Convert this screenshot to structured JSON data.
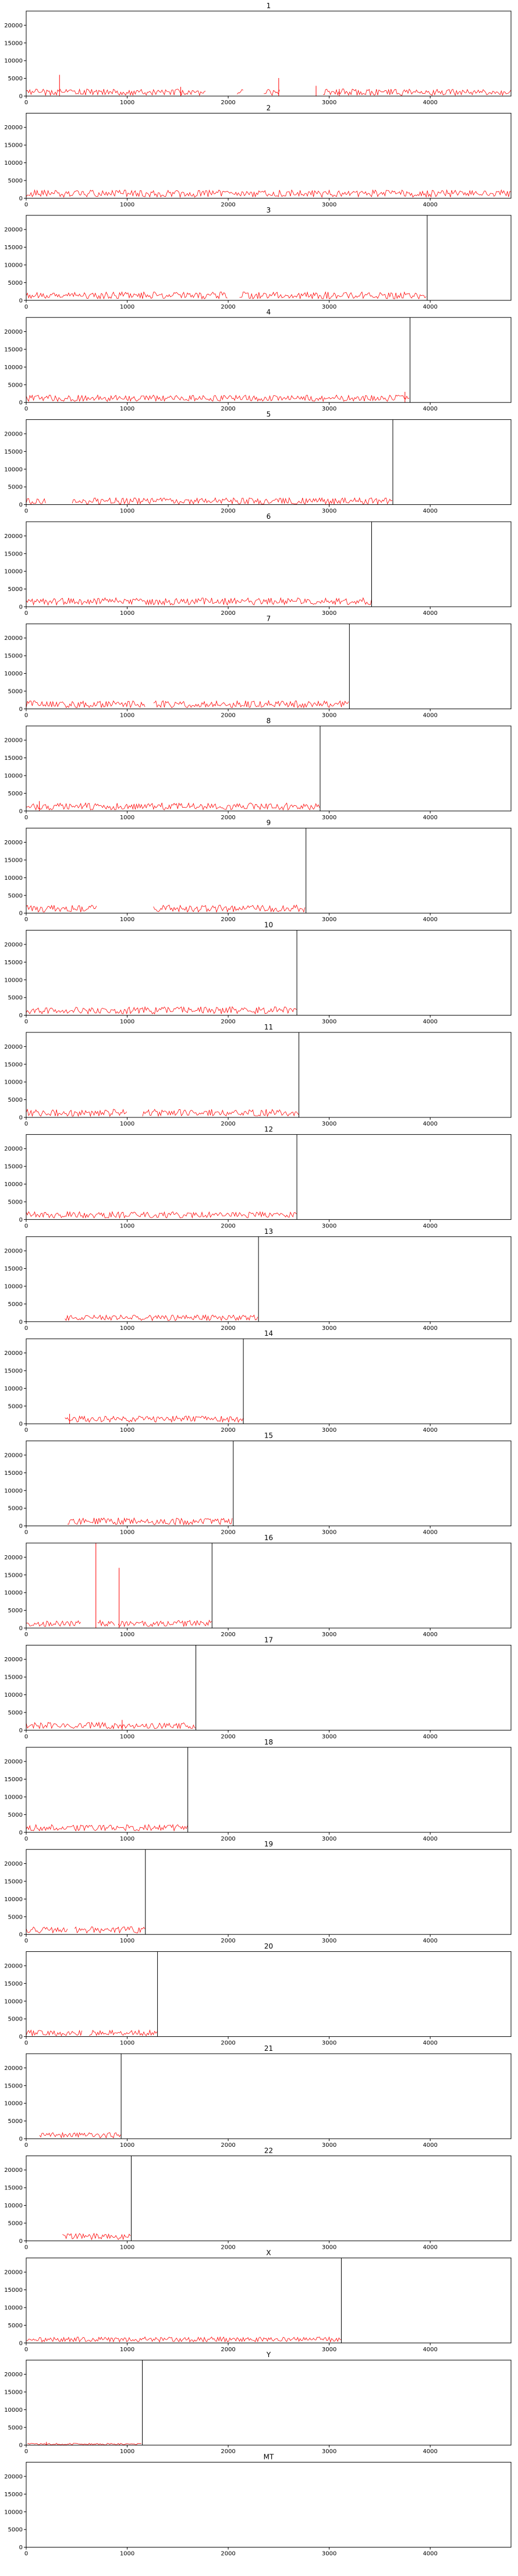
{
  "figure": {
    "ytick_labels": [
      "0",
      "5000",
      "10000",
      "15000",
      "20000"
    ],
    "xtick_labels": [
      "0",
      "1000",
      "2000",
      "3000",
      "4000"
    ],
    "colors": {
      "series": "#ff0000",
      "frame": "#000000",
      "end_marker": "#000000",
      "background": "#ffffff"
    }
  },
  "chart_data": [
    {
      "type": "line",
      "title": "1",
      "xlim": [
        0,
        4800
      ],
      "ylim": [
        0,
        24000
      ],
      "yticks": [
        0,
        5000,
        10000,
        15000,
        20000
      ],
      "xticks": [
        0,
        1000,
        2000,
        3000,
        4000
      ],
      "end_line_x": null,
      "baseline": 1100,
      "amplitude": 900,
      "gaps": [
        [
          1780,
          2080
        ],
        [
          2150,
          2340
        ],
        [
          2520,
          2930
        ]
      ],
      "spikes": [
        [
          330,
          6000
        ],
        [
          1530,
          2600
        ],
        [
          2500,
          5100
        ],
        [
          2870,
          2900
        ],
        [
          3100,
          2000
        ]
      ]
    },
    {
      "type": "line",
      "title": "2",
      "xlim": [
        0,
        4800
      ],
      "ylim": [
        0,
        24000
      ],
      "yticks": [
        0,
        5000,
        10000,
        15000,
        20000
      ],
      "xticks": [
        0,
        1000,
        2000,
        3000,
        4000
      ],
      "end_line_x": null,
      "baseline": 1300,
      "amplitude": 1000,
      "gaps": [],
      "spikes": []
    },
    {
      "type": "line",
      "title": "3",
      "xlim": [
        0,
        4800
      ],
      "ylim": [
        0,
        24000
      ],
      "yticks": [
        0,
        5000,
        10000,
        15000,
        20000
      ],
      "xticks": [
        0,
        1000,
        2000,
        3000,
        4000
      ],
      "end_line_x": 3970,
      "baseline": 1400,
      "amplitude": 1000,
      "gaps": [
        [
          2000,
          2100
        ]
      ],
      "spikes": []
    },
    {
      "type": "line",
      "title": "4",
      "xlim": [
        0,
        4800
      ],
      "ylim": [
        0,
        24000
      ],
      "yticks": [
        0,
        5000,
        10000,
        15000,
        20000
      ],
      "xticks": [
        0,
        1000,
        2000,
        3000,
        4000
      ],
      "end_line_x": 3800,
      "baseline": 1200,
      "amplitude": 900,
      "gaps": [],
      "spikes": [
        [
          3750,
          3000
        ]
      ]
    },
    {
      "type": "line",
      "title": "5",
      "xlim": [
        0,
        4800
      ],
      "ylim": [
        0,
        24000
      ],
      "yticks": [
        0,
        5000,
        10000,
        15000,
        20000
      ],
      "xticks": [
        0,
        1000,
        2000,
        3000,
        4000
      ],
      "end_line_x": 3630,
      "baseline": 1000,
      "amplitude": 900,
      "gaps": [
        [
          200,
          450
        ]
      ],
      "spikes": []
    },
    {
      "type": "line",
      "title": "6",
      "xlim": [
        0,
        4800
      ],
      "ylim": [
        0,
        24000
      ],
      "yticks": [
        0,
        5000,
        10000,
        15000,
        20000
      ],
      "xticks": [
        0,
        1000,
        2000,
        3000,
        4000
      ],
      "end_line_x": 3420,
      "baseline": 1500,
      "amplitude": 1000,
      "gaps": [],
      "spikes": []
    },
    {
      "type": "line",
      "title": "7",
      "xlim": [
        0,
        4800
      ],
      "ylim": [
        0,
        24000
      ],
      "yticks": [
        0,
        5000,
        10000,
        15000,
        20000
      ],
      "xticks": [
        0,
        1000,
        2000,
        3000,
        4000
      ],
      "end_line_x": 3200,
      "baseline": 1300,
      "amplitude": 1000,
      "gaps": [
        [
          1180,
          1250
        ]
      ],
      "spikes": []
    },
    {
      "type": "line",
      "title": "8",
      "xlim": [
        0,
        4800
      ],
      "ylim": [
        0,
        24000
      ],
      "yticks": [
        0,
        5000,
        10000,
        15000,
        20000
      ],
      "xticks": [
        0,
        1000,
        2000,
        3000,
        4000
      ],
      "end_line_x": 2910,
      "baseline": 1300,
      "amplitude": 1000,
      "gaps": [],
      "spikes": [
        [
          130,
          2800
        ]
      ]
    },
    {
      "type": "line",
      "title": "9",
      "xlim": [
        0,
        4800
      ],
      "ylim": [
        0,
        24000
      ],
      "yticks": [
        0,
        5000,
        10000,
        15000,
        20000
      ],
      "xticks": [
        0,
        1000,
        2000,
        3000,
        4000
      ],
      "end_line_x": 2770,
      "baseline": 1300,
      "amplitude": 1000,
      "gaps": [
        [
          700,
          1250
        ]
      ],
      "spikes": []
    },
    {
      "type": "line",
      "title": "10",
      "xlim": [
        0,
        4800
      ],
      "ylim": [
        0,
        24000
      ],
      "yticks": [
        0,
        5000,
        10000,
        15000,
        20000
      ],
      "xticks": [
        0,
        1000,
        2000,
        3000,
        4000
      ],
      "end_line_x": 2680,
      "baseline": 1400,
      "amplitude": 1000,
      "gaps": [],
      "spikes": []
    },
    {
      "type": "line",
      "title": "11",
      "xlim": [
        0,
        4800
      ],
      "ylim": [
        0,
        24000
      ],
      "yticks": [
        0,
        5000,
        10000,
        15000,
        20000
      ],
      "xticks": [
        0,
        1000,
        2000,
        3000,
        4000
      ],
      "end_line_x": 2700,
      "baseline": 1300,
      "amplitude": 1000,
      "gaps": [
        [
          1000,
          1150
        ]
      ],
      "spikes": []
    },
    {
      "type": "line",
      "title": "12",
      "xlim": [
        0,
        4800
      ],
      "ylim": [
        0,
        24000
      ],
      "yticks": [
        0,
        5000,
        10000,
        15000,
        20000
      ],
      "xticks": [
        0,
        1000,
        2000,
        3000,
        4000
      ],
      "end_line_x": 2680,
      "baseline": 1300,
      "amplitude": 900,
      "gaps": [],
      "spikes": []
    },
    {
      "type": "line",
      "title": "13",
      "xlim": [
        0,
        4800
      ],
      "ylim": [
        0,
        24000
      ],
      "yticks": [
        0,
        5000,
        10000,
        15000,
        20000
      ],
      "xticks": [
        0,
        1000,
        2000,
        3000,
        4000
      ],
      "end_line_x": 2300,
      "baseline": 1100,
      "amplitude": 800,
      "gaps": [
        [
          0,
          380
        ]
      ],
      "spikes": []
    },
    {
      "type": "line",
      "title": "14",
      "xlim": [
        0,
        4800
      ],
      "ylim": [
        0,
        24000
      ],
      "yticks": [
        0,
        5000,
        10000,
        15000,
        20000
      ],
      "xticks": [
        0,
        1000,
        2000,
        3000,
        4000
      ],
      "end_line_x": 2150,
      "baseline": 1300,
      "amplitude": 900,
      "gaps": [
        [
          0,
          380
        ]
      ],
      "spikes": [
        [
          430,
          2800
        ]
      ]
    },
    {
      "type": "line",
      "title": "15",
      "xlim": [
        0,
        4800
      ],
      "ylim": [
        0,
        24000
      ],
      "yticks": [
        0,
        5000,
        10000,
        15000,
        20000
      ],
      "xticks": [
        0,
        1000,
        2000,
        3000,
        4000
      ],
      "end_line_x": 2050,
      "baseline": 1300,
      "amplitude": 1000,
      "gaps": [
        [
          0,
          400
        ]
      ],
      "spikes": []
    },
    {
      "type": "line",
      "title": "16",
      "xlim": [
        0,
        4800
      ],
      "ylim": [
        0,
        24000
      ],
      "yticks": [
        0,
        5000,
        10000,
        15000,
        20000
      ],
      "xticks": [
        0,
        1000,
        2000,
        3000,
        4000
      ],
      "end_line_x": 1840,
      "baseline": 1300,
      "amplitude": 900,
      "gaps": [
        [
          550,
          700
        ],
        [
          880,
          900
        ]
      ],
      "spikes": [
        [
          690,
          24000
        ],
        [
          920,
          17000
        ]
      ]
    },
    {
      "type": "line",
      "title": "17",
      "xlim": [
        0,
        4800
      ],
      "ylim": [
        0,
        24000
      ],
      "yticks": [
        0,
        5000,
        10000,
        15000,
        20000
      ],
      "xticks": [
        0,
        1000,
        2000,
        3000,
        4000
      ],
      "end_line_x": 1680,
      "baseline": 1300,
      "amplitude": 900,
      "gaps": [],
      "spikes": [
        [
          950,
          2900
        ]
      ]
    },
    {
      "type": "line",
      "title": "18",
      "xlim": [
        0,
        4800
      ],
      "ylim": [
        0,
        24000
      ],
      "yticks": [
        0,
        5000,
        10000,
        15000,
        20000
      ],
      "xticks": [
        0,
        1000,
        2000,
        3000,
        4000
      ],
      "end_line_x": 1600,
      "baseline": 1300,
      "amplitude": 900,
      "gaps": [],
      "spikes": []
    },
    {
      "type": "line",
      "title": "19",
      "xlim": [
        0,
        4800
      ],
      "ylim": [
        0,
        24000
      ],
      "yticks": [
        0,
        5000,
        10000,
        15000,
        20000
      ],
      "xticks": [
        0,
        1000,
        2000,
        3000,
        4000
      ],
      "end_line_x": 1180,
      "baseline": 1300,
      "amplitude": 900,
      "gaps": [
        [
          420,
          470
        ]
      ],
      "spikes": []
    },
    {
      "type": "line",
      "title": "20",
      "xlim": [
        0,
        4800
      ],
      "ylim": [
        0,
        24000
      ],
      "yticks": [
        0,
        5000,
        10000,
        15000,
        20000
      ],
      "xticks": [
        0,
        1000,
        2000,
        3000,
        4000
      ],
      "end_line_x": 1300,
      "baseline": 1000,
      "amplitude": 800,
      "gaps": [
        [
          560,
          620
        ]
      ],
      "spikes": []
    },
    {
      "type": "line",
      "title": "21",
      "xlim": [
        0,
        4800
      ],
      "ylim": [
        0,
        24000
      ],
      "yticks": [
        0,
        5000,
        10000,
        15000,
        20000
      ],
      "xticks": [
        0,
        1000,
        2000,
        3000,
        4000
      ],
      "end_line_x": 940,
      "baseline": 1000,
      "amplitude": 800,
      "gaps": [
        [
          0,
          120
        ]
      ],
      "spikes": []
    },
    {
      "type": "line",
      "title": "22",
      "xlim": [
        0,
        4800
      ],
      "ylim": [
        0,
        24000
      ],
      "yticks": [
        0,
        5000,
        10000,
        15000,
        20000
      ],
      "xticks": [
        0,
        1000,
        2000,
        3000,
        4000
      ],
      "end_line_x": 1040,
      "baseline": 1200,
      "amplitude": 900,
      "gaps": [
        [
          0,
          350
        ]
      ],
      "spikes": []
    },
    {
      "type": "line",
      "title": "X",
      "xlim": [
        0,
        4800
      ],
      "ylim": [
        0,
        24000
      ],
      "yticks": [
        0,
        5000,
        10000,
        15000,
        20000
      ],
      "xticks": [
        0,
        1000,
        2000,
        3000,
        4000
      ],
      "end_line_x": 3120,
      "baseline": 1000,
      "amplitude": 700,
      "gaps": [],
      "spikes": []
    },
    {
      "type": "line",
      "title": "Y",
      "xlim": [
        0,
        4800
      ],
      "ylim": [
        0,
        24000
      ],
      "yticks": [
        0,
        5000,
        10000,
        15000,
        20000
      ],
      "xticks": [
        0,
        1000,
        2000,
        3000,
        4000
      ],
      "end_line_x": 1150,
      "baseline": 300,
      "amplitude": 250,
      "gaps": [
        [
          0,
          10
        ]
      ],
      "spikes": [
        [
          200,
          900
        ]
      ]
    },
    {
      "type": "line",
      "title": "MT",
      "xlim": [
        0,
        4800
      ],
      "ylim": [
        0,
        24000
      ],
      "yticks": [
        0,
        5000,
        10000,
        15000,
        20000
      ],
      "xticks": [
        0,
        1000,
        2000,
        3000,
        4000
      ],
      "end_line_x": null,
      "baseline": null,
      "amplitude": 0,
      "gaps": [],
      "spikes": []
    }
  ]
}
